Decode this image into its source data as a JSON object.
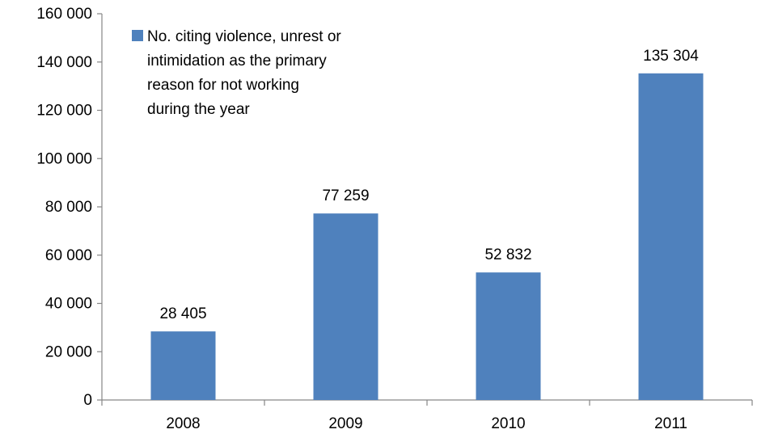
{
  "chart_data": {
    "type": "bar",
    "categories": [
      "2008",
      "2009",
      "2010",
      "2011"
    ],
    "series": [
      {
        "name": "No. citing violence, unrest or intimidation as the primary reason for not working during the year",
        "values": [
          28405,
          77259,
          52832,
          135304
        ],
        "color": "#4F81BD"
      }
    ],
    "data_labels": [
      "28 405",
      "77 259",
      "52 832",
      "135 304"
    ],
    "ylim": [
      0,
      160000
    ],
    "y_ticks": [
      0,
      20000,
      40000,
      60000,
      80000,
      100000,
      120000,
      140000,
      160000
    ],
    "y_tick_labels": [
      "0",
      "20 000",
      "40 000",
      "60 000",
      "80 000",
      "100 000",
      "120 000",
      "140 000",
      "160 000"
    ],
    "title": "",
    "xlabel": "",
    "ylabel": "",
    "grid": false,
    "legend": {
      "placement": "top-left",
      "lines": [
        "No. citing violence, unrest or",
        "intimidation as the primary",
        "reason for not working",
        "during the year"
      ]
    },
    "axis_color": "#868686"
  }
}
